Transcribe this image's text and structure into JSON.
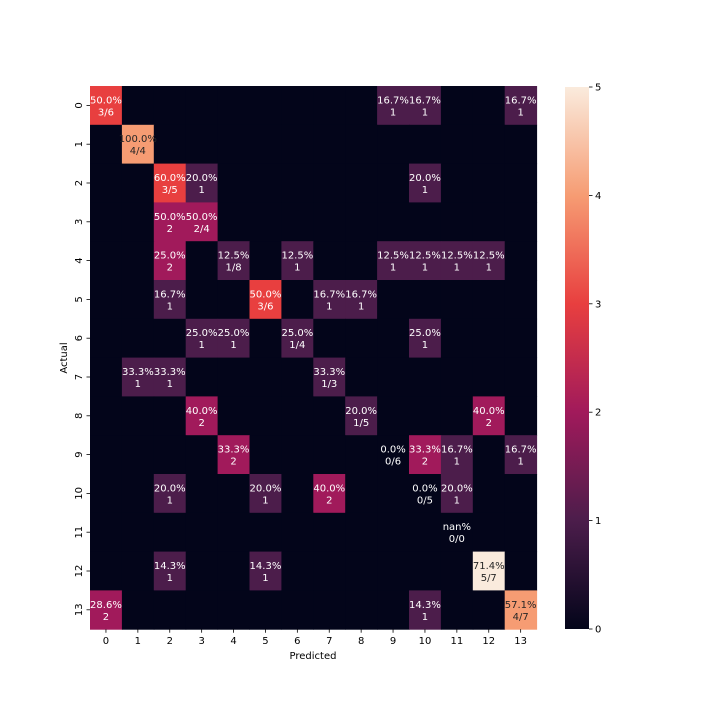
{
  "chart_data": {
    "type": "heatmap",
    "xlabel": "Predicted",
    "ylabel": "Actual",
    "x_categories": [
      "0",
      "1",
      "2",
      "3",
      "4",
      "5",
      "6",
      "7",
      "8",
      "9",
      "10",
      "11",
      "12",
      "13"
    ],
    "y_categories": [
      "0",
      "1",
      "2",
      "3",
      "4",
      "5",
      "6",
      "7",
      "8",
      "9",
      "10",
      "11",
      "12",
      "13"
    ],
    "values": [
      [
        3,
        0,
        0,
        0,
        0,
        0,
        0,
        0,
        0,
        1,
        1,
        0,
        0,
        1
      ],
      [
        0,
        4,
        0,
        0,
        0,
        0,
        0,
        0,
        0,
        0,
        0,
        0,
        0,
        0
      ],
      [
        0,
        0,
        3,
        1,
        0,
        0,
        0,
        0,
        0,
        0,
        1,
        0,
        0,
        0
      ],
      [
        0,
        0,
        2,
        2,
        0,
        0,
        0,
        0,
        0,
        0,
        0,
        0,
        0,
        0
      ],
      [
        0,
        0,
        2,
        0,
        1,
        0,
        1,
        0,
        0,
        1,
        1,
        1,
        1,
        0
      ],
      [
        0,
        0,
        1,
        0,
        0,
        3,
        0,
        1,
        1,
        0,
        0,
        0,
        0,
        0
      ],
      [
        0,
        0,
        0,
        1,
        1,
        0,
        1,
        0,
        0,
        0,
        1,
        0,
        0,
        0
      ],
      [
        0,
        1,
        1,
        0,
        0,
        0,
        0,
        1,
        0,
        0,
        0,
        0,
        0,
        0
      ],
      [
        0,
        0,
        0,
        2,
        0,
        0,
        0,
        0,
        1,
        0,
        0,
        0,
        2,
        0
      ],
      [
        0,
        0,
        0,
        0,
        2,
        0,
        0,
        0,
        0,
        0,
        2,
        1,
        0,
        1
      ],
      [
        0,
        0,
        1,
        0,
        0,
        1,
        0,
        2,
        0,
        0,
        0,
        1,
        0,
        0
      ],
      [
        0,
        0,
        0,
        0,
        0,
        0,
        0,
        0,
        0,
        0,
        0,
        0,
        0,
        0
      ],
      [
        0,
        0,
        1,
        0,
        0,
        1,
        0,
        0,
        0,
        0,
        0,
        0,
        5,
        0
      ],
      [
        2,
        0,
        0,
        0,
        0,
        0,
        0,
        0,
        0,
        0,
        1,
        0,
        0,
        4
      ]
    ],
    "annotations": [
      {
        "row": 0,
        "col": 0,
        "pct": "50.0%",
        "count": "3/6"
      },
      {
        "row": 0,
        "col": 9,
        "pct": "16.7%",
        "count": "1"
      },
      {
        "row": 0,
        "col": 10,
        "pct": "16.7%",
        "count": "1"
      },
      {
        "row": 0,
        "col": 13,
        "pct": "16.7%",
        "count": "1"
      },
      {
        "row": 1,
        "col": 1,
        "pct": "100.0%",
        "count": "4/4"
      },
      {
        "row": 2,
        "col": 2,
        "pct": "60.0%",
        "count": "3/5"
      },
      {
        "row": 2,
        "col": 3,
        "pct": "20.0%",
        "count": "1"
      },
      {
        "row": 2,
        "col": 10,
        "pct": "20.0%",
        "count": "1"
      },
      {
        "row": 3,
        "col": 2,
        "pct": "50.0%",
        "count": "2"
      },
      {
        "row": 3,
        "col": 3,
        "pct": "50.0%",
        "count": "2/4"
      },
      {
        "row": 4,
        "col": 2,
        "pct": "25.0%",
        "count": "2"
      },
      {
        "row": 4,
        "col": 4,
        "pct": "12.5%",
        "count": "1/8"
      },
      {
        "row": 4,
        "col": 6,
        "pct": "12.5%",
        "count": "1"
      },
      {
        "row": 4,
        "col": 9,
        "pct": "12.5%",
        "count": "1"
      },
      {
        "row": 4,
        "col": 10,
        "pct": "12.5%",
        "count": "1"
      },
      {
        "row": 4,
        "col": 11,
        "pct": "12.5%",
        "count": "1"
      },
      {
        "row": 4,
        "col": 12,
        "pct": "12.5%",
        "count": "1"
      },
      {
        "row": 5,
        "col": 2,
        "pct": "16.7%",
        "count": "1"
      },
      {
        "row": 5,
        "col": 5,
        "pct": "50.0%",
        "count": "3/6"
      },
      {
        "row": 5,
        "col": 7,
        "pct": "16.7%",
        "count": "1"
      },
      {
        "row": 5,
        "col": 8,
        "pct": "16.7%",
        "count": "1"
      },
      {
        "row": 6,
        "col": 3,
        "pct": "25.0%",
        "count": "1"
      },
      {
        "row": 6,
        "col": 4,
        "pct": "25.0%",
        "count": "1"
      },
      {
        "row": 6,
        "col": 6,
        "pct": "25.0%",
        "count": "1/4"
      },
      {
        "row": 6,
        "col": 10,
        "pct": "25.0%",
        "count": "1"
      },
      {
        "row": 7,
        "col": 1,
        "pct": "33.3%",
        "count": "1"
      },
      {
        "row": 7,
        "col": 2,
        "pct": "33.3%",
        "count": "1"
      },
      {
        "row": 7,
        "col": 7,
        "pct": "33.3%",
        "count": "1/3"
      },
      {
        "row": 8,
        "col": 3,
        "pct": "40.0%",
        "count": "2"
      },
      {
        "row": 8,
        "col": 8,
        "pct": "20.0%",
        "count": "1/5"
      },
      {
        "row": 8,
        "col": 12,
        "pct": "40.0%",
        "count": "2"
      },
      {
        "row": 9,
        "col": 4,
        "pct": "33.3%",
        "count": "2"
      },
      {
        "row": 9,
        "col": 9,
        "pct": "0.0%",
        "count": "0/6"
      },
      {
        "row": 9,
        "col": 10,
        "pct": "33.3%",
        "count": "2"
      },
      {
        "row": 9,
        "col": 11,
        "pct": "16.7%",
        "count": "1"
      },
      {
        "row": 9,
        "col": 13,
        "pct": "16.7%",
        "count": "1"
      },
      {
        "row": 10,
        "col": 2,
        "pct": "20.0%",
        "count": "1"
      },
      {
        "row": 10,
        "col": 5,
        "pct": "20.0%",
        "count": "1"
      },
      {
        "row": 10,
        "col": 7,
        "pct": "40.0%",
        "count": "2"
      },
      {
        "row": 10,
        "col": 10,
        "pct": "0.0%",
        "count": "0/5"
      },
      {
        "row": 10,
        "col": 11,
        "pct": "20.0%",
        "count": "1"
      },
      {
        "row": 11,
        "col": 11,
        "pct": "nan%",
        "count": "0/0"
      },
      {
        "row": 12,
        "col": 2,
        "pct": "14.3%",
        "count": "1"
      },
      {
        "row": 12,
        "col": 5,
        "pct": "14.3%",
        "count": "1"
      },
      {
        "row": 12,
        "col": 12,
        "pct": "71.4%",
        "count": "5/7"
      },
      {
        "row": 13,
        "col": 0,
        "pct": "28.6%",
        "count": "2"
      },
      {
        "row": 13,
        "col": 10,
        "pct": "14.3%",
        "count": "1"
      },
      {
        "row": 13,
        "col": 13,
        "pct": "57.1%",
        "count": "4/7"
      }
    ],
    "colorbar": {
      "min": 0,
      "max": 5,
      "ticks": [
        "0",
        "1",
        "2",
        "3",
        "4",
        "5"
      ],
      "colormap": "rocket",
      "stops": [
        "#03051a",
        "#4c1d4b",
        "#a11a5b",
        "#e83f3f",
        "#f69c73",
        "#faebdd"
      ]
    },
    "grid": false,
    "legend": "colorbar-right"
  }
}
